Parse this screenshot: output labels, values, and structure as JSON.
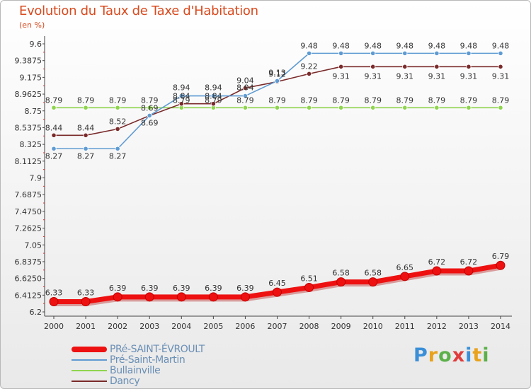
{
  "header": {
    "title": "Evolution du Taux de Taxe d'Habitation",
    "subtitle": "(en %)"
  },
  "logo": {
    "text": "Proxiti",
    "colors": [
      "#3a8fd8",
      "#e8a21c",
      "#5bb04a",
      "#e03c3c",
      "#3a8fd8",
      "#e8a21c",
      "#5bb04a"
    ]
  },
  "chart_data": {
    "type": "line",
    "x": [
      2000,
      2001,
      2002,
      2003,
      2004,
      2005,
      2006,
      2007,
      2008,
      2009,
      2010,
      2011,
      2012,
      2013,
      2014
    ],
    "ylim": [
      6.2,
      9.6
    ],
    "yticks": [
      "6.2",
      "6.4125",
      "6.6250",
      "6.8375",
      "7.05",
      "7.2625",
      "7.4750",
      "7.6875",
      "7.9",
      "8.1125",
      "8.325",
      "8.5375",
      "8.75",
      "8.9625",
      "9.175",
      "9.3875",
      "9.6"
    ],
    "grid": false,
    "legend_position": "bottom-left",
    "series": [
      {
        "name": "PRé-SAINT-ÉVROULT",
        "color": "#ee1111",
        "values": [
          6.33,
          6.33,
          6.39,
          6.39,
          6.39,
          6.39,
          6.39,
          6.45,
          6.51,
          6.58,
          6.58,
          6.65,
          6.72,
          6.72,
          6.79
        ],
        "labels": [
          "6.33",
          "6.33",
          "6.39",
          "6.39",
          "6.39",
          "6.39",
          "6.39",
          "6.45",
          "6.51",
          "6.58",
          "6.58",
          "6.65",
          "6.72",
          "6.72",
          "6.79"
        ]
      },
      {
        "name": "Pré-Saint-Martin",
        "color": "#5f9bd2",
        "values": [
          8.27,
          8.27,
          8.27,
          8.69,
          8.94,
          8.94,
          8.94,
          9.13,
          9.48,
          9.48,
          9.48,
          9.48,
          9.48,
          9.48,
          9.48
        ],
        "labels": [
          "8.27",
          "8.27",
          "8.27",
          "8.69",
          "8.94",
          "8.94",
          "8.94",
          "9.13",
          "9.48",
          "9.48",
          "9.48",
          "9.48",
          "9.48",
          "9.48",
          "9.48"
        ]
      },
      {
        "name": "Bullainville",
        "color": "#8ed44e",
        "values": [
          8.79,
          8.79,
          8.79,
          8.79,
          8.79,
          8.79,
          8.79,
          8.79,
          8.79,
          8.79,
          8.79,
          8.79,
          8.79,
          8.79,
          8.79
        ],
        "labels": [
          "8.79",
          "8.79",
          "8.79",
          "8.79",
          "8.79",
          "8.79",
          "8.79",
          "8.79",
          "8.79",
          "8.79",
          "8.79",
          "8.79",
          "8.79",
          "8.79",
          "8.79"
        ]
      },
      {
        "name": "Dancy",
        "color": "#7a2a2a",
        "values": [
          8.44,
          8.44,
          8.52,
          8.69,
          8.84,
          8.84,
          9.04,
          9.12,
          9.22,
          9.31,
          9.31,
          9.31,
          9.31,
          9.31,
          9.31
        ],
        "labels": [
          "8.44",
          "8.44",
          "8.52",
          "8.69",
          "8.84",
          "8.84",
          "9.04",
          "9.12",
          "9.22",
          "9.31",
          "9.31",
          "9.31",
          "9.31",
          "9.31",
          "9.31"
        ]
      }
    ]
  }
}
